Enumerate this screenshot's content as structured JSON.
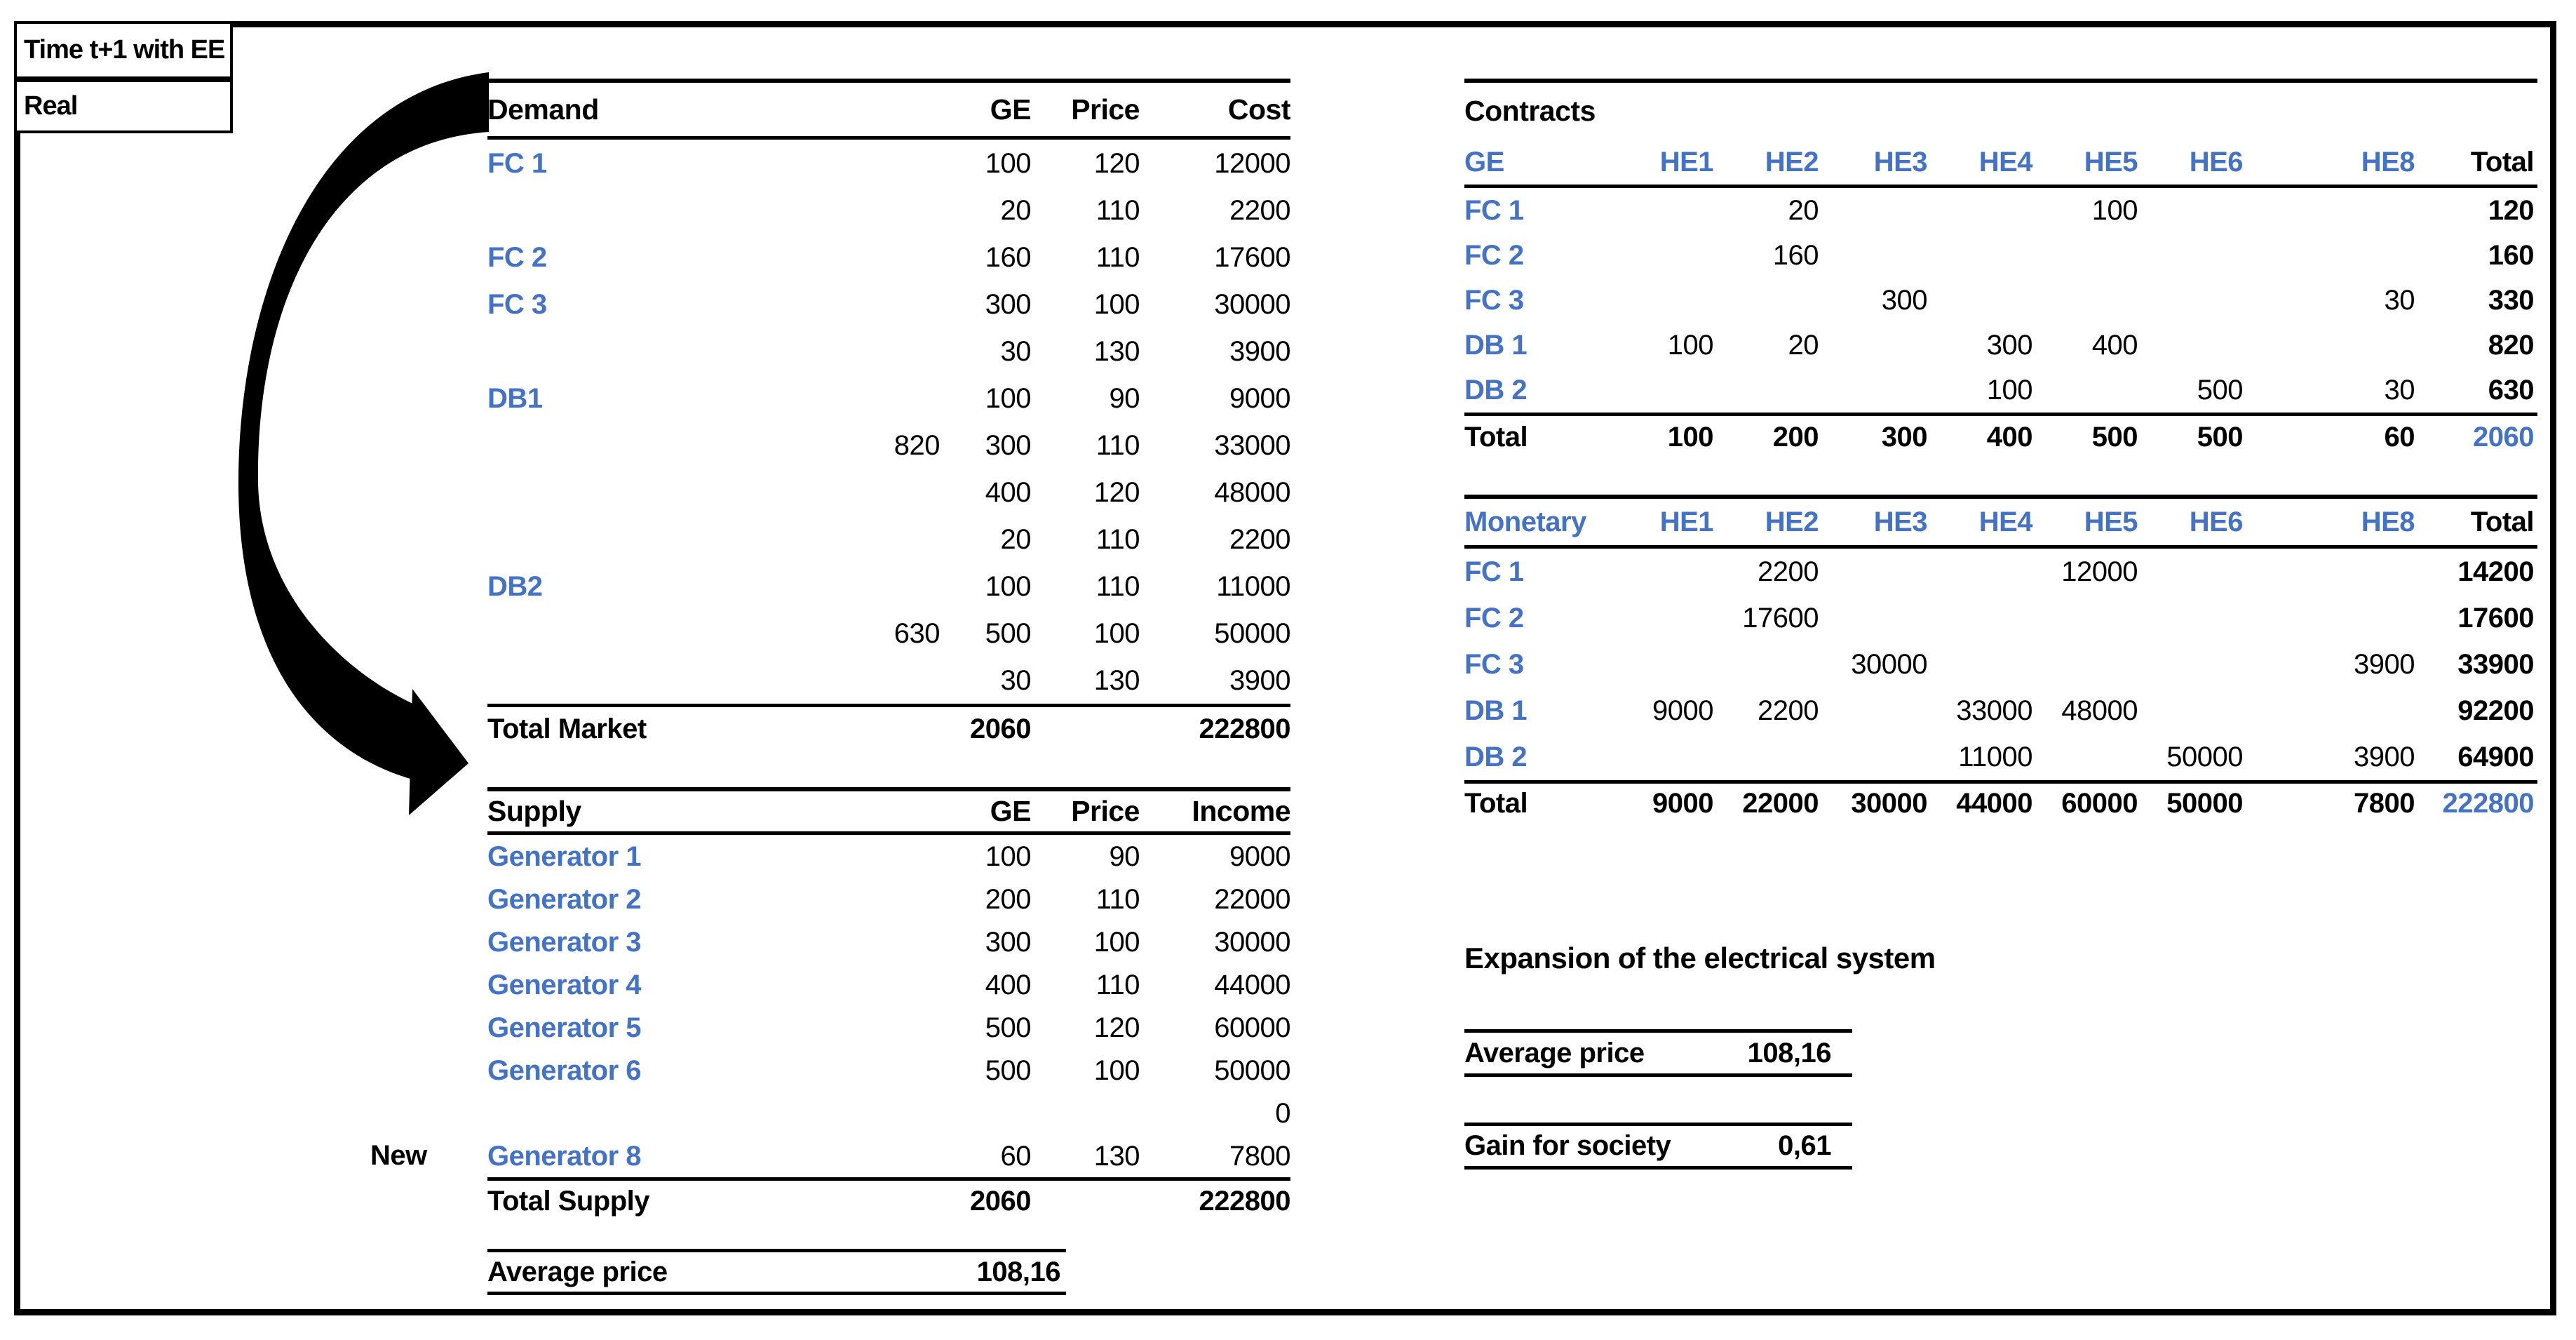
{
  "colors": {
    "accent_blue": "#4472C4",
    "text_black": "#000000",
    "background": "#ffffff"
  },
  "header_boxes": {
    "scenario": "Time t+1 with EE",
    "mode": "Real"
  },
  "demand_table": {
    "title": "Demand",
    "headers": {
      "ge": "GE",
      "price": "Price",
      "cost": "Cost"
    },
    "rows": [
      {
        "label": "FC 1",
        "pre": "",
        "ge": "100",
        "price": "120",
        "cost": "12000"
      },
      {
        "label": "",
        "pre": "",
        "ge": "20",
        "price": "110",
        "cost": "2200"
      },
      {
        "label": "FC 2",
        "pre": "",
        "ge": "160",
        "price": "110",
        "cost": "17600"
      },
      {
        "label": "FC 3",
        "pre": "",
        "ge": "300",
        "price": "100",
        "cost": "30000"
      },
      {
        "label": "",
        "pre": "",
        "ge": "30",
        "price": "130",
        "cost": "3900"
      },
      {
        "label": "DB1",
        "pre": "",
        "ge": "100",
        "price": "90",
        "cost": "9000"
      },
      {
        "label": "",
        "pre": "820",
        "ge": "300",
        "price": "110",
        "cost": "33000"
      },
      {
        "label": "",
        "pre": "",
        "ge": "400",
        "price": "120",
        "cost": "48000"
      },
      {
        "label": "",
        "pre": "",
        "ge": "20",
        "price": "110",
        "cost": "2200"
      },
      {
        "label": "DB2",
        "pre": "",
        "ge": "100",
        "price": "110",
        "cost": "11000"
      },
      {
        "label": "",
        "pre": "630",
        "ge": "500",
        "price": "100",
        "cost": "50000"
      },
      {
        "label": "",
        "pre": "",
        "ge": "30",
        "price": "130",
        "cost": "3900"
      }
    ],
    "total": {
      "label": "Total Market",
      "ge": "2060",
      "price": "",
      "cost": "222800"
    }
  },
  "supply_table": {
    "title": "Supply",
    "headers": {
      "ge": "GE",
      "price": "Price",
      "income": "Income"
    },
    "new_label": "New",
    "rows": [
      {
        "label": "Generator 1",
        "ge": "100",
        "price": "90",
        "income": "9000"
      },
      {
        "label": "Generator 2",
        "ge": "200",
        "price": "110",
        "income": "22000"
      },
      {
        "label": "Generator 3",
        "ge": "300",
        "price": "100",
        "income": "30000"
      },
      {
        "label": "Generator 4",
        "ge": "400",
        "price": "110",
        "income": "44000"
      },
      {
        "label": "Generator 5",
        "ge": "500",
        "price": "120",
        "income": "60000"
      },
      {
        "label": "Generator 6",
        "ge": "500",
        "price": "100",
        "income": "50000"
      },
      {
        "label": "",
        "ge": "",
        "price": "",
        "income": "0"
      },
      {
        "label": "Generator 8",
        "ge": "60",
        "price": "130",
        "income": "7800"
      }
    ],
    "total": {
      "label": "Total Supply",
      "ge": "2060",
      "price": "",
      "income": "222800"
    },
    "average": {
      "label": "Average price",
      "value": "108,16"
    }
  },
  "contracts_table": {
    "title": "Contracts",
    "header": {
      "label": "GE",
      "cells": [
        "HE1",
        "HE2",
        "HE3",
        "HE4",
        "HE5",
        "HE6",
        "",
        "HE8"
      ],
      "total": "Total"
    },
    "rows": [
      {
        "label": "FC 1",
        "cells": [
          "",
          "20",
          "",
          "",
          "100",
          "",
          "",
          ""
        ],
        "total": "120"
      },
      {
        "label": "FC 2",
        "cells": [
          "",
          "160",
          "",
          "",
          "",
          "",
          "",
          ""
        ],
        "total": "160"
      },
      {
        "label": "FC 3",
        "cells": [
          "",
          "",
          "300",
          "",
          "",
          "",
          "",
          "30"
        ],
        "total": "330"
      },
      {
        "label": "DB 1",
        "cells": [
          "100",
          "20",
          "",
          "300",
          "400",
          "",
          "",
          ""
        ],
        "total": "820"
      },
      {
        "label": "DB 2",
        "cells": [
          "",
          "",
          "",
          "100",
          "",
          "500",
          "",
          "30"
        ],
        "total": "630"
      }
    ],
    "total_row": {
      "label": "Total",
      "cells": [
        "100",
        "200",
        "300",
        "400",
        "500",
        "500",
        "",
        "60"
      ],
      "total": "2060"
    }
  },
  "monetary_table": {
    "title": "Monetary",
    "header": {
      "label": "Monetary",
      "cells": [
        "HE1",
        "HE2",
        "HE3",
        "HE4",
        "HE5",
        "HE6",
        "",
        "HE8"
      ],
      "total": "Total"
    },
    "rows": [
      {
        "label": "FC 1",
        "cells": [
          "",
          "2200",
          "",
          "",
          "12000",
          "",
          "",
          ""
        ],
        "total": "14200"
      },
      {
        "label": "FC 2",
        "cells": [
          "",
          "17600",
          "",
          "",
          "",
          "",
          "",
          ""
        ],
        "total": "17600"
      },
      {
        "label": "FC 3",
        "cells": [
          "",
          "",
          "30000",
          "",
          "",
          "",
          "",
          "3900"
        ],
        "total": "33900"
      },
      {
        "label": "DB 1",
        "cells": [
          "9000",
          "2200",
          "",
          "33000",
          "48000",
          "",
          "",
          ""
        ],
        "total": "92200"
      },
      {
        "label": "DB 2",
        "cells": [
          "",
          "",
          "",
          "11000",
          "",
          "50000",
          "",
          "3900"
        ],
        "total": "64900"
      }
    ],
    "total_row": {
      "label": "Total",
      "cells": [
        "9000",
        "22000",
        "30000",
        "44000",
        "60000",
        "50000",
        "",
        "7800"
      ],
      "total": "222800"
    }
  },
  "expansion": {
    "title": "Expansion of the electrical system",
    "average": {
      "label": "Average price",
      "value": "108,16"
    },
    "gain": {
      "label": "Gain for society",
      "value": "0,61"
    }
  }
}
